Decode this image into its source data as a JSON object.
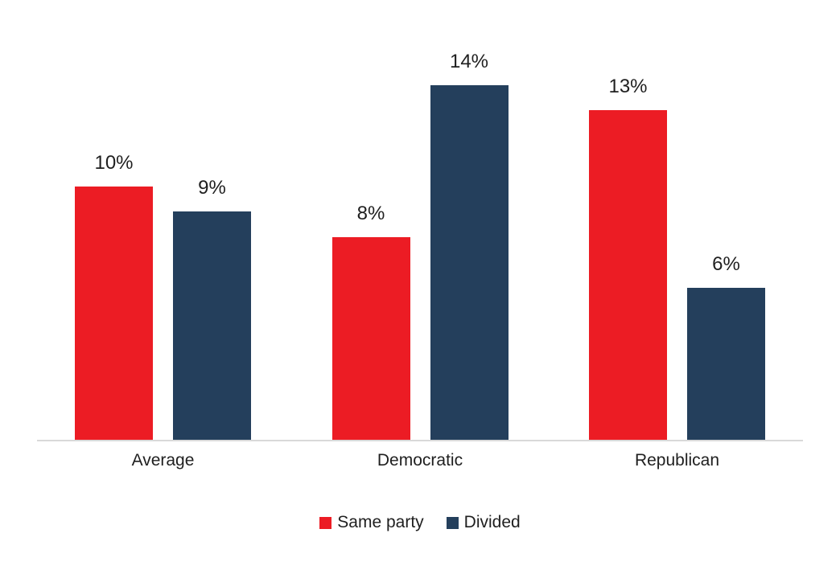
{
  "chart_data": {
    "type": "bar",
    "title": "",
    "xlabel": "",
    "ylabel": "",
    "categories": [
      "Average",
      "Democratic",
      "Republican"
    ],
    "series": [
      {
        "name": "Same party",
        "color": "#ec1c24",
        "values": [
          10,
          8,
          13
        ],
        "labels": [
          "10%",
          "8%",
          "13%"
        ]
      },
      {
        "name": "Divided",
        "color": "#243f5c",
        "values": [
          9,
          14,
          6
        ],
        "labels": [
          "9%",
          "14%",
          "6%"
        ]
      }
    ],
    "ylim": [
      0,
      14
    ],
    "grid": false,
    "legend_position": "bottom",
    "data_labels": true,
    "axis_line_color": "#d9d9d9",
    "text_color": "#1f1f1f",
    "background_color": "#ffffff"
  }
}
